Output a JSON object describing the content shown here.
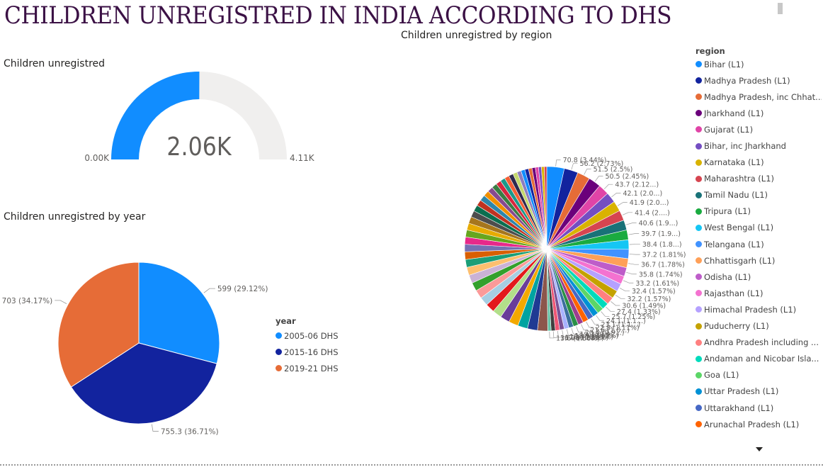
{
  "page_title": "CHILDREN UNREGISTRED IN INDIA  ACCORDING TO DHS",
  "icons": {
    "scroll_down": "chevron-down-icon"
  },
  "chart_data": [
    {
      "type": "gauge",
      "title": "Children unregistred",
      "value": 2060,
      "value_label": "2.06K",
      "min": 0,
      "min_label": "0.00K",
      "max": 4110,
      "max_label": "4.11K",
      "colors": {
        "fill": "#118DFF",
        "track": "#F0EFEE"
      }
    },
    {
      "type": "pie",
      "title": "Children unregistred by year",
      "legend_title": "year",
      "legend_position": "right",
      "categories": [
        "2005-06 DHS",
        "2015-16 DHS",
        "2019-21 DHS"
      ],
      "values": [
        599,
        755.3,
        703
      ],
      "labels": [
        "599 (29.12%)",
        "755.3 (36.71%)",
        "703 (34.17%)"
      ],
      "colors": [
        "#118DFF",
        "#12239E",
        "#E66C37"
      ]
    },
    {
      "type": "pie",
      "title": "Children unregistred by region",
      "legend_title": "region",
      "legend_position": "right",
      "total": 2057.3,
      "legend": [
        {
          "name": "Bihar (L1)",
          "color": "#118DFF"
        },
        {
          "name": "Madhya Pradesh (L1)",
          "color": "#12239E"
        },
        {
          "name": "Madhya Pradesh, inc Chhat...",
          "color": "#E66C37"
        },
        {
          "name": "Jharkhand (L1)",
          "color": "#6B007B"
        },
        {
          "name": "Gujarat (L1)",
          "color": "#E044A7"
        },
        {
          "name": "Bihar, inc Jharkhand",
          "color": "#744EC2"
        },
        {
          "name": "Karnataka (L1)",
          "color": "#D9B300"
        },
        {
          "name": "Maharashtra (L1)",
          "color": "#D64550"
        },
        {
          "name": "Tamil Nadu (L1)",
          "color": "#197278"
        },
        {
          "name": "Tripura (L1)",
          "color": "#1AAB40"
        },
        {
          "name": "West Bengal (L1)",
          "color": "#15C6F4"
        },
        {
          "name": "Telangana (L1)",
          "color": "#4092FF"
        },
        {
          "name": "Chhattisgarh (L1)",
          "color": "#FFA058"
        },
        {
          "name": "Odisha (L1)",
          "color": "#BE5DC9"
        },
        {
          "name": "Rajasthan (L1)",
          "color": "#F472D0"
        },
        {
          "name": "Himachal Pradesh (L1)",
          "color": "#B5A1FF"
        },
        {
          "name": "Puducherry (L1)",
          "color": "#C4A200"
        },
        {
          "name": "Andhra Pradesh including ...",
          "color": "#FF8080"
        },
        {
          "name": "Andaman and Nicobar Isla...",
          "color": "#00DBBC"
        },
        {
          "name": "Goa (L1)",
          "color": "#5BD667"
        },
        {
          "name": "Uttar Pradesh (L1)",
          "color": "#0091D5"
        },
        {
          "name": "Uttarakhand (L1)",
          "color": "#4668C5"
        },
        {
          "name": "Arunachal Pradesh (L1)",
          "color": "#FF6300"
        }
      ],
      "values": [
        70.8,
        56.2,
        51.5,
        50.5,
        43.7,
        42.1,
        41.9,
        41.4,
        40.6,
        39.7,
        38.4,
        37.2,
        36.7,
        35.8,
        33.2,
        32.4,
        32.2,
        30.6,
        27.4,
        25.7,
        24.1,
        23.1,
        22.8,
        21.6,
        20.4,
        19.3,
        18.9,
        18.7,
        17.5,
        16.9,
        13.6
      ],
      "labels": [
        "70.8 (3.44%)",
        "56.2 (2.73%)",
        "51.5 (2.5%)",
        "50.5 (2.45%)",
        "43.7 (2.12...)",
        "42.1 (2.0...)",
        "41.9 (2.0...)",
        "41.4 (2....)",
        "40.6 (1.9...)",
        "39.7 (1.9...)",
        "38.4 (1.8...)",
        "37.2 (1.81%)",
        "36.7 (1.78%)",
        "35.8 (1.74%)",
        "33.2 (1.61%)",
        "32.4 (1.57%)",
        "32.2 (1.57%)",
        "30.6 (1.49%)",
        "27.4 (1.33%)",
        "25.7 (1.25%)",
        "24.1 (1.1...)",
        "23.1 (1.1...)",
        "22.8 (1.11%)",
        "21.6 (1.0...)",
        "20.4 (0.9...)",
        "19.3 (0.9...)",
        "18.9 (0.92%)",
        "18.7 (0.91%)",
        "17.5 (0.85%)",
        "16.9 (0.82%)",
        "13.6 (0.66%)"
      ]
    }
  ]
}
